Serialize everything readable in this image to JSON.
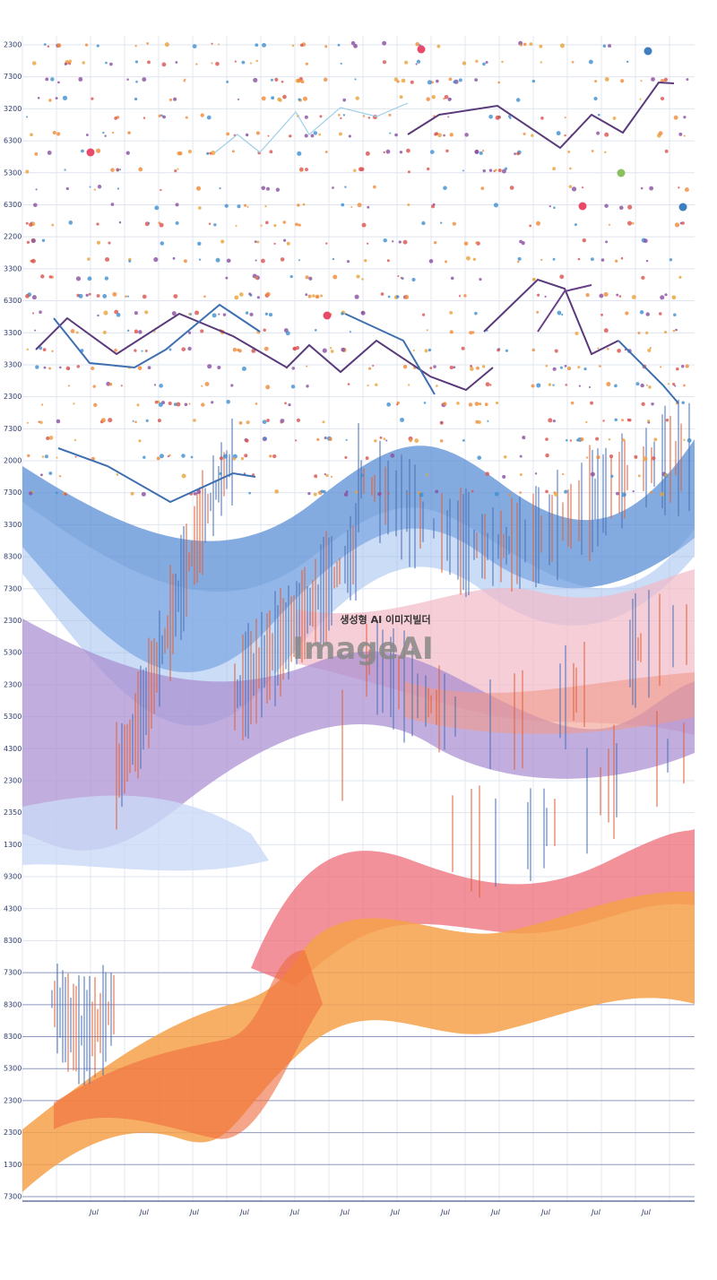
{
  "watermark": {
    "caption": "생성형 AI 이미지빌더",
    "brand": "ImageAI"
  },
  "y_labels": [
    "2300",
    "7300",
    "3200",
    "6300",
    "5300",
    "6300",
    "2200",
    "3300",
    "6300",
    "3300",
    "3300",
    "2300",
    "7300",
    "2000",
    "7300",
    "3300",
    "8300",
    "7300",
    "2300",
    "5300",
    "2300",
    "5300",
    "4300",
    "2300",
    "2350",
    "1300",
    "9300",
    "4300",
    "8300",
    "7300",
    "8300",
    "8300",
    "5300",
    "2300",
    "2300",
    "1300",
    "7300"
  ],
  "x_labels": [
    "Jul",
    "Jul",
    "Jul",
    "Jul",
    "Jul",
    "Jul",
    "Jul",
    "Jul",
    "Jul",
    "Jul",
    "Jul",
    "Jul"
  ]
}
